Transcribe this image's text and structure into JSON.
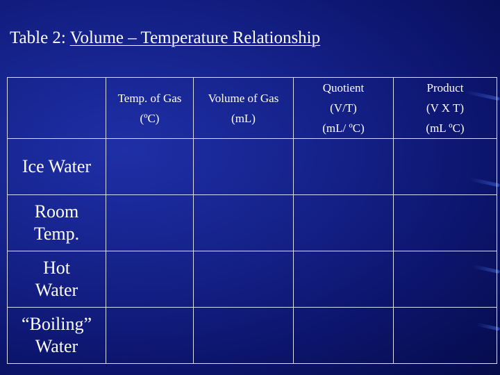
{
  "slide": {
    "title_prefix": "Table 2: ",
    "title_subject": "Volume – Temperature Relationship"
  },
  "table": {
    "headers": [
      {
        "lines": [
          ""
        ]
      },
      {
        "lines": [
          "Temp. of Gas",
          "(ºC)"
        ]
      },
      {
        "lines": [
          "Volume of Gas",
          "(mL)"
        ]
      },
      {
        "lines": [
          "Quotient",
          "(V/T)",
          "(mL/ ºC)"
        ]
      },
      {
        "lines": [
          "Product",
          "(V X T)",
          "(mL ºC)"
        ]
      }
    ],
    "rows": [
      {
        "label_lines": [
          "Ice Water"
        ]
      },
      {
        "label_lines": [
          "Room",
          "Temp."
        ]
      },
      {
        "label_lines": [
          "Hot",
          "Water"
        ]
      },
      {
        "label_lines": [
          "“Boiling”",
          "Water"
        ]
      }
    ]
  },
  "colors": {
    "background": "#16238c",
    "text": "#ffffff",
    "grid": "#d9dcff"
  }
}
